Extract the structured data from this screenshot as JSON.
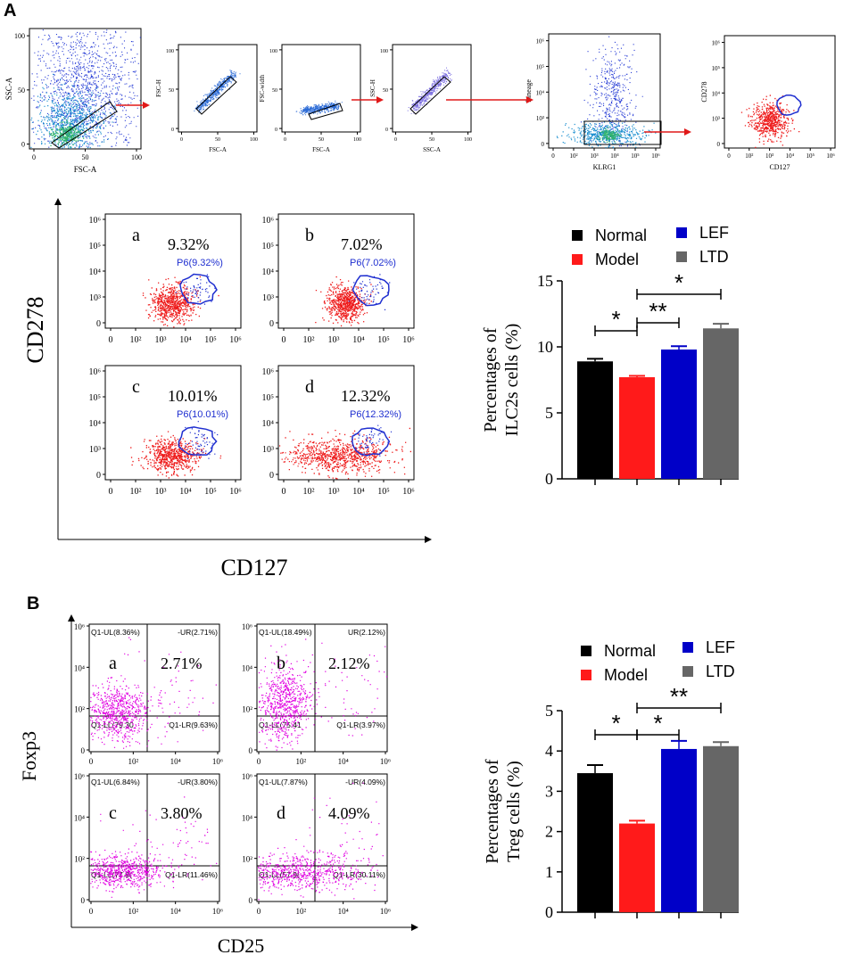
{
  "panel_labels": [
    "A",
    "B"
  ],
  "colors": {
    "normal": "#000000",
    "model": "#ff1a1a",
    "lef": "#0000c8",
    "ltd": "#666666",
    "scatter_blue": "#2a3fd6",
    "scatter_red": "#ee1b1b",
    "scatter_magenta": "#e100e1",
    "arrow": "#e01818",
    "gate_blue": "#1f2fd0"
  },
  "gating": [
    {
      "xlabel": "FSC-A",
      "ylabel": "SSC-A",
      "xticks": [
        "0",
        "50",
        "100"
      ],
      "yticks": [
        "0",
        "50",
        "100"
      ]
    },
    {
      "xlabel": "FSC-A",
      "ylabel": "FSC-H",
      "xticks": [
        "0",
        "50",
        "100"
      ],
      "yticks": [
        "0",
        "50",
        "100"
      ]
    },
    {
      "xlabel": "FSC-A",
      "ylabel": "FSC-width",
      "xticks": [
        "0",
        "50",
        "100"
      ],
      "yticks": [
        "0",
        "50",
        "100"
      ]
    },
    {
      "xlabel": "SSC-A",
      "ylabel": "SSC-H",
      "xticks": [
        "0",
        "50",
        "100"
      ],
      "yticks": [
        "0",
        "50",
        "100"
      ]
    },
    {
      "xlabel": "KLRG1",
      "ylabel": "Lineage",
      "xticks": [
        "0",
        "10²",
        "10³",
        "10⁴",
        "10⁵",
        "10⁶"
      ],
      "yticks": [
        "0",
        "10³",
        "10⁴",
        "10⁵",
        "10⁶"
      ]
    },
    {
      "xlabel": "CD127",
      "ylabel": "CD278",
      "xticks": [
        "0",
        "10²",
        "10³",
        "10⁴",
        "10⁵",
        "10⁶"
      ],
      "yticks": [
        "0",
        "10³",
        "10⁴",
        "10⁵",
        "10⁶"
      ]
    }
  ],
  "panelA": {
    "ylabel": "CD278",
    "xlabel": "CD127",
    "xticks": [
      "0",
      "10²",
      "10³",
      "10⁴",
      "10⁵",
      "10⁶"
    ],
    "yticks": [
      "0",
      "10³",
      "10⁴",
      "10⁵",
      "10⁶"
    ],
    "subplots": [
      {
        "letter": "a",
        "pct": "9.32%",
        "gate": "P6(9.32%)"
      },
      {
        "letter": "b",
        "pct": "7.02%",
        "gate": "P6(7.02%)"
      },
      {
        "letter": "c",
        "pct": "10.01%",
        "gate": "P6(10.01%)"
      },
      {
        "letter": "d",
        "pct": "12.32%",
        "gate": "P6(12.32%)"
      }
    ]
  },
  "panelB": {
    "ylabel": "Foxp3",
    "xlabel": "CD25",
    "xticks": [
      "0",
      "10²",
      "10⁴",
      "10⁶"
    ],
    "yticks": [
      "0",
      "10²",
      "10⁴",
      "10⁶"
    ],
    "subplots": [
      {
        "letter": "a",
        "pct": "2.71%",
        "ul": "Q1-UL(8.36%)",
        "ur": "-UR(2.71%)",
        "ll": "Q1-LL(79.30",
        "lr": "Q1-LR(9.63%)"
      },
      {
        "letter": "b",
        "pct": "2.12%",
        "ul": "Q1-UL(18.49%)",
        "ur": "UR(2.12%)",
        "ll": "Q1-LL(75.41",
        "lr": "Q1-LR(3.97%)"
      },
      {
        "letter": "c",
        "pct": "3.80%",
        "ul": "Q1-UL(6.84%)",
        "ur": "-UR(3.80%)",
        "ll": "Q1-LL(77.9(",
        "lr": "Q1-LR(11.46%)"
      },
      {
        "letter": "d",
        "pct": "4.09%",
        "ul": "Q1-UL(7.87%)",
        "ur": "-UR(4.09%)",
        "ll": "Q1-LL(57.9(",
        "lr": "Q1-LR(30.11%)"
      }
    ]
  },
  "chart_data": [
    {
      "type": "bar",
      "title": "",
      "ylabel": "Percentages of ILC2s cells (%)",
      "ylabel_lines": [
        "Percentages of",
        "ILC2s cells (%)"
      ],
      "categories": [
        "Normal",
        "Model",
        "LEF",
        "LTD"
      ],
      "values": [
        8.9,
        7.7,
        9.8,
        11.4
      ],
      "errors": [
        0.2,
        0.1,
        0.25,
        0.35
      ],
      "ylim": [
        0,
        15
      ],
      "yticks": [
        0,
        5,
        10,
        15
      ],
      "ytick_labels": [
        "0",
        "5",
        "10",
        "15"
      ],
      "legend": [
        "Normal",
        "Model",
        "LEF",
        "LTD"
      ],
      "legend_placement": "top",
      "significance": [
        {
          "from": 0,
          "to": 1,
          "label": "*"
        },
        {
          "from": 1,
          "to": 2,
          "label": "**"
        },
        {
          "from": 1,
          "to": 3,
          "label": "*"
        }
      ]
    },
    {
      "type": "bar",
      "title": "",
      "ylabel": "Percentages of Treg cells (%)",
      "ylabel_lines": [
        "Percentages of",
        "Treg cells (%)"
      ],
      "categories": [
        "Normal",
        "Model",
        "LEF",
        "LTD"
      ],
      "values": [
        3.45,
        2.2,
        4.05,
        4.12
      ],
      "errors": [
        0.2,
        0.07,
        0.2,
        0.1
      ],
      "ylim": [
        0,
        5
      ],
      "yticks": [
        0,
        1,
        2,
        3,
        4,
        5
      ],
      "ytick_labels": [
        "0",
        "1",
        "2",
        "3",
        "4",
        "5"
      ],
      "legend": [
        "Normal",
        "Model",
        "LEF",
        "LTD"
      ],
      "legend_placement": "top",
      "significance": [
        {
          "from": 0,
          "to": 1,
          "label": "*"
        },
        {
          "from": 1,
          "to": 2,
          "label": "*"
        },
        {
          "from": 1,
          "to": 3,
          "label": "**"
        }
      ]
    }
  ]
}
